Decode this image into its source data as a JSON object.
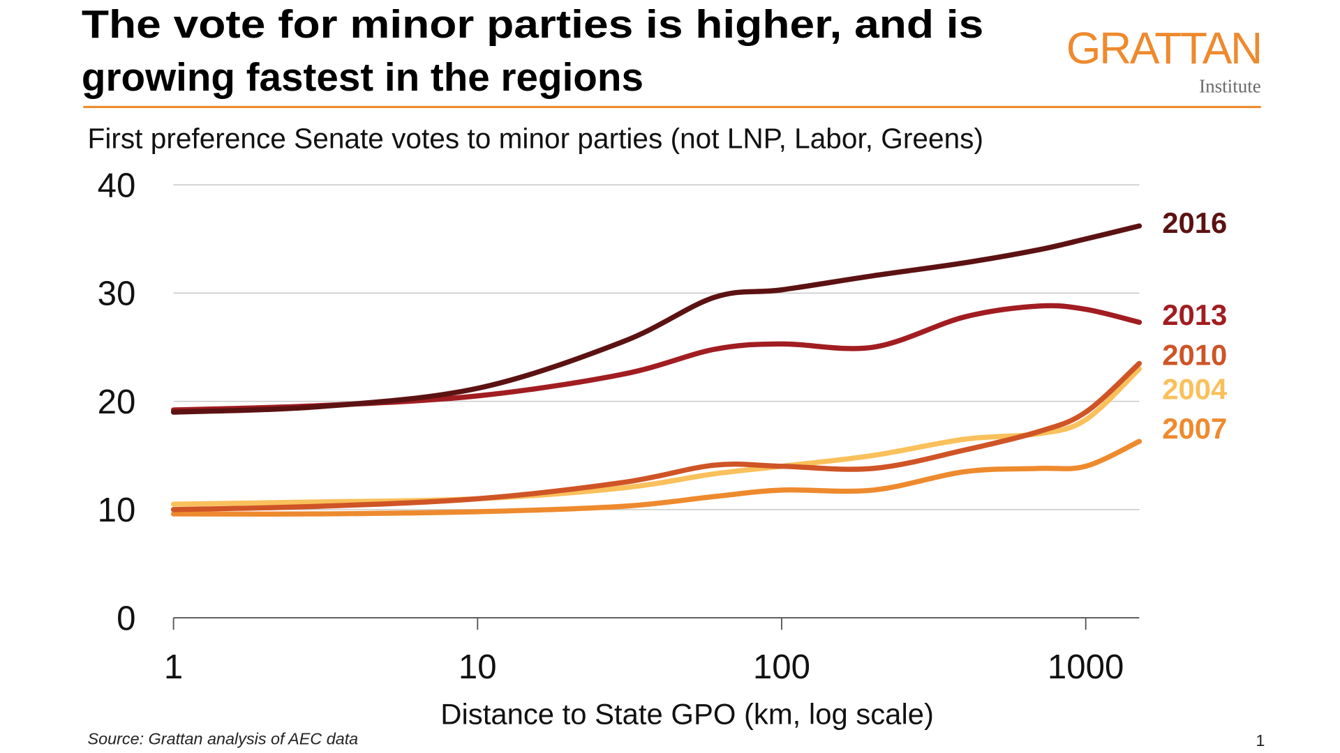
{
  "title_line1": "The vote for minor parties is higher, and is",
  "title_line2": "growing fastest in the regions",
  "logo": {
    "name": "GRATTAN",
    "sub": "Institute",
    "color": "#ee8a2e"
  },
  "source": "Source: Grattan analysis of AEC data",
  "page_number": "1",
  "chart_data": {
    "type": "line",
    "title": "First preference Senate votes to minor parties (not LNP, Labor, Greens)",
    "xlabel": "Distance to State GPO (km, log scale)",
    "ylabel": "",
    "x_scale": "log",
    "xlim": [
      1,
      1500
    ],
    "ylim": [
      0,
      40
    ],
    "x_ticks": [
      "1",
      "10",
      "100",
      "1000"
    ],
    "y_ticks": [
      "0",
      "10",
      "20",
      "30",
      "40"
    ],
    "grid": "horizontal",
    "legend": "direct labels at right",
    "x": [
      1,
      3,
      10,
      30,
      60,
      100,
      200,
      400,
      700,
      1000,
      1500
    ],
    "series": [
      {
        "name": "2016",
        "color": "#5c1212",
        "values": [
          19,
          19.5,
          21.2,
          25.5,
          29.6,
          30.3,
          31.6,
          32.8,
          34,
          35,
          36.2
        ]
      },
      {
        "name": "2013",
        "color": "#a11d21",
        "values": [
          19.2,
          19.6,
          20.5,
          22.5,
          24.8,
          25.3,
          25,
          27.8,
          28.8,
          28.5,
          27.3
        ]
      },
      {
        "name": "2010",
        "color": "#cf5426",
        "values": [
          10,
          10.3,
          11,
          12.5,
          14.1,
          14,
          13.8,
          15.5,
          17.2,
          19,
          23.5
        ]
      },
      {
        "name": "2004",
        "color": "#f9c05b",
        "values": [
          10.5,
          10.7,
          11,
          12,
          13.3,
          14,
          15,
          16.5,
          17,
          18.3,
          23
        ]
      },
      {
        "name": "2007",
        "color": "#ee8a2e",
        "values": [
          9.6,
          9.6,
          9.8,
          10.3,
          11.2,
          11.8,
          11.8,
          13.5,
          13.8,
          14,
          16.3
        ]
      }
    ],
    "label_y": {
      "2016": 36.5,
      "2013": 28,
      "2010": 24.3,
      "2004": 21.6,
      "2007": 17.5
    }
  }
}
